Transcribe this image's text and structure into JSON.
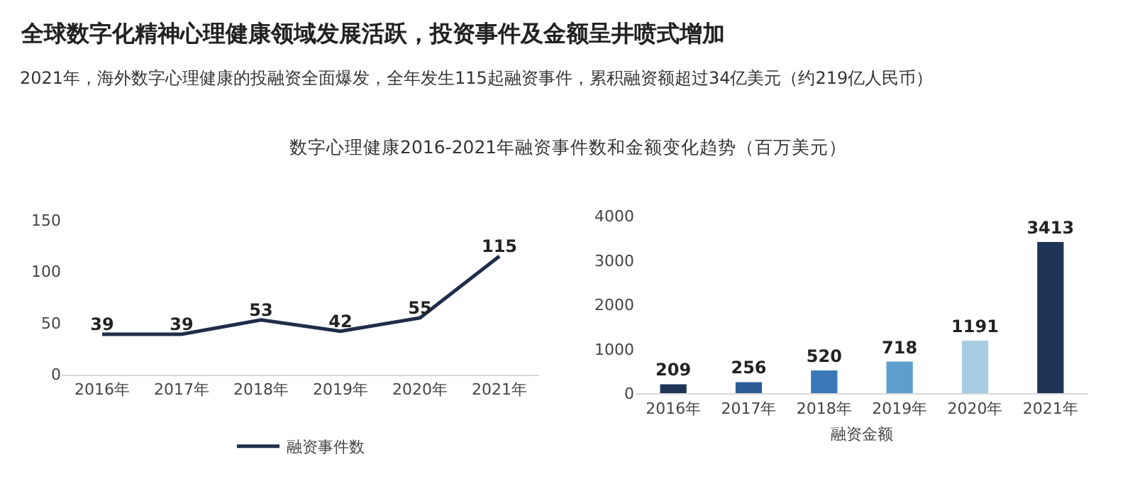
{
  "chart_data": [
    {
      "type": "line",
      "title": "全球数字化精神心理健康领域发展活跃，投资事件及金额呈井喷式增加",
      "subtitle": "2021年，海外数字心理健康的投融资全面爆发，全年发生115起融资事件，累积融资额超过34亿美元（约219亿人民币）",
      "annotations": [
        "数字心理健康2016-2021年融资事件数和金额变化趋势（百万美元）"
      ],
      "categories": [
        "2016年",
        "2017年",
        "2018年",
        "2019年",
        "2020年",
        "2021年"
      ],
      "series": [
        {
          "name": "融资事件数",
          "color": "#1f2d4a",
          "values": [
            39,
            39,
            53,
            42,
            55,
            115
          ]
        }
      ],
      "ylim": [
        0,
        150
      ],
      "yticks": [
        0,
        50,
        100,
        150
      ],
      "data_labels": true,
      "legend": "bottom",
      "marker": "none"
    },
    {
      "type": "bar",
      "categories": [
        "2016年",
        "2017年",
        "2018年",
        "2019年",
        "2020年",
        "2021年"
      ],
      "values": [
        209,
        256,
        520,
        718,
        1191,
        3413
      ],
      "colors": [
        "#1f3556",
        "#2a5d96",
        "#3a78b8",
        "#5d9fcc",
        "#a8cde2",
        "#1f3556"
      ],
      "xlabel": "融资金额",
      "ylim": [
        0,
        4000
      ],
      "yticks": [
        0,
        1000,
        2000,
        3000,
        4000
      ],
      "data_labels": true
    }
  ]
}
